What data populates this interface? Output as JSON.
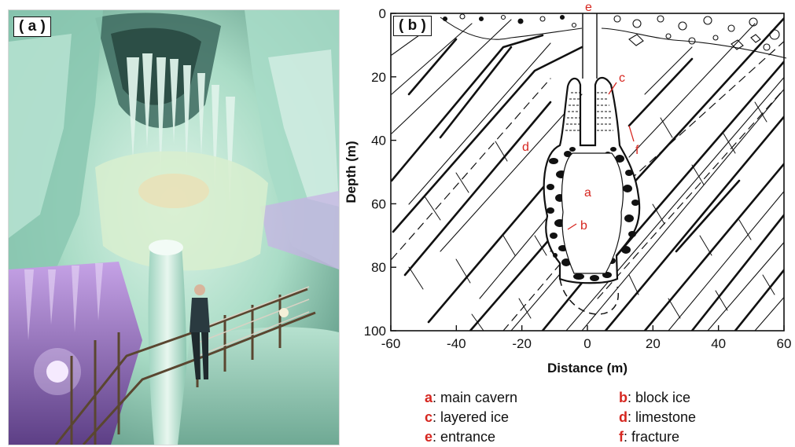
{
  "panel_a": {
    "tag": "( a )"
  },
  "panel_b": {
    "tag": "( b )",
    "axes": {
      "xlabel": "Distance (m)",
      "ylabel": "Depth (m)",
      "x_ticks": [
        "-60",
        "-40",
        "-20",
        "0",
        "20",
        "40",
        "60"
      ],
      "y_ticks": [
        "0",
        "20",
        "40",
        "60",
        "80",
        "100"
      ],
      "xlim": [
        -60,
        60
      ],
      "ylim": [
        0,
        100
      ]
    },
    "markers": {
      "a": "a",
      "b": "b",
      "c": "c",
      "d": "d",
      "e": "e",
      "f": "f"
    }
  },
  "legend": [
    {
      "key": "a",
      "text": ": main cavern"
    },
    {
      "key": "b",
      "text": ": block ice"
    },
    {
      "key": "c",
      "text": ": layered ice"
    },
    {
      "key": "d",
      "text": ": limestone"
    },
    {
      "key": "e",
      "text": ": entrance"
    },
    {
      "key": "f",
      "text": ":  fracture"
    }
  ],
  "colors": {
    "marker_red": "#d6261f",
    "ice_green": "#9fd9c3",
    "ice_purple": "#b48ad8",
    "rock_black": "#111111"
  }
}
